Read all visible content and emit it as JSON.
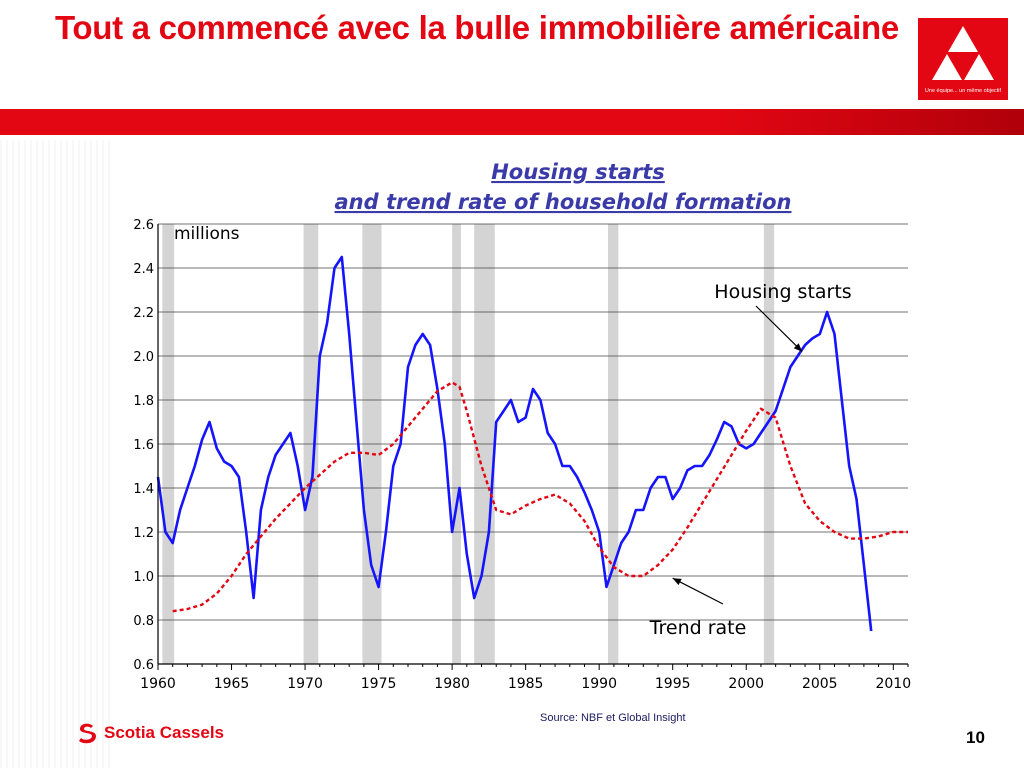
{
  "slide": {
    "title": "Tout a commencé avec la bulle immobilière américaine",
    "page_number": "10",
    "source": "Source: NBF et Global Insight",
    "brand_name": "Scotia Cassels",
    "logo_tagline": "Une équipe... un même objectif",
    "colors": {
      "accent": "#e30613",
      "series_housing": "#1414ff",
      "series_trend": "#e30613",
      "recession": "#d4d4d4"
    }
  },
  "chart_data": {
    "type": "line",
    "title": "Housing starts",
    "subtitle": "and trend rate of household formation",
    "unit_label": "millions",
    "xlabel": "",
    "ylabel": "",
    "xlim": [
      1960,
      2011
    ],
    "ylim": [
      0.6,
      2.6
    ],
    "x_ticks": [
      "1960",
      "1965",
      "1970",
      "1975",
      "1980",
      "1985",
      "1990",
      "1995",
      "2000",
      "2005",
      "2010"
    ],
    "y_ticks": [
      "0.6",
      "0.8",
      "1.0",
      "1.2",
      "1.4",
      "1.6",
      "1.8",
      "2.0",
      "2.2",
      "2.4",
      "2.6"
    ],
    "grid": true,
    "recessions": [
      [
        1960.3,
        1961.1
      ],
      [
        1969.9,
        1970.9
      ],
      [
        1973.9,
        1975.2
      ],
      [
        1980.0,
        1980.6
      ],
      [
        1981.5,
        1982.9
      ],
      [
        1990.6,
        1991.3
      ],
      [
        2001.2,
        2001.9
      ]
    ],
    "series": [
      {
        "name": "Housing starts",
        "style": "solid",
        "x": [
          1960,
          1960.5,
          1961,
          1961.5,
          1962,
          1962.5,
          1963,
          1963.5,
          1964,
          1964.5,
          1965,
          1965.5,
          1966,
          1966.5,
          1967,
          1967.5,
          1968,
          1968.5,
          1969,
          1969.5,
          1970,
          1970.5,
          1971,
          1971.5,
          1972,
          1972.5,
          1973,
          1973.5,
          1974,
          1974.5,
          1975,
          1975.5,
          1976,
          1976.5,
          1977,
          1977.5,
          1978,
          1978.5,
          1979,
          1979.5,
          1980,
          1980.5,
          1981,
          1981.5,
          1982,
          1982.5,
          1983,
          1983.5,
          1984,
          1984.5,
          1985,
          1985.5,
          1986,
          1986.5,
          1987,
          1987.5,
          1988,
          1988.5,
          1989,
          1989.5,
          1990,
          1990.5,
          1991,
          1991.5,
          1992,
          1992.5,
          1993,
          1993.5,
          1994,
          1994.5,
          1995,
          1995.5,
          1996,
          1996.5,
          1997,
          1997.5,
          1998,
          1998.5,
          1999,
          1999.5,
          2000,
          2000.5,
          2001,
          2001.5,
          2002,
          2002.5,
          2003,
          2003.5,
          2004,
          2004.5,
          2005,
          2005.5,
          2006,
          2006.5,
          2007,
          2007.5,
          2008,
          2008.5
        ],
        "values": [
          1.45,
          1.2,
          1.15,
          1.3,
          1.4,
          1.5,
          1.62,
          1.7,
          1.58,
          1.52,
          1.5,
          1.45,
          1.2,
          0.9,
          1.3,
          1.45,
          1.55,
          1.6,
          1.65,
          1.5,
          1.3,
          1.45,
          2.0,
          2.15,
          2.4,
          2.45,
          2.1,
          1.7,
          1.3,
          1.05,
          0.95,
          1.2,
          1.5,
          1.6,
          1.95,
          2.05,
          2.1,
          2.05,
          1.85,
          1.6,
          1.2,
          1.4,
          1.1,
          0.9,
          1.0,
          1.2,
          1.7,
          1.75,
          1.8,
          1.7,
          1.72,
          1.85,
          1.8,
          1.65,
          1.6,
          1.5,
          1.5,
          1.45,
          1.38,
          1.3,
          1.2,
          0.95,
          1.05,
          1.15,
          1.2,
          1.3,
          1.3,
          1.4,
          1.45,
          1.45,
          1.35,
          1.4,
          1.48,
          1.5,
          1.5,
          1.55,
          1.62,
          1.7,
          1.68,
          1.6,
          1.58,
          1.6,
          1.65,
          1.7,
          1.75,
          1.85,
          1.95,
          2.0,
          2.05,
          2.08,
          2.1,
          2.2,
          2.1,
          1.8,
          1.5,
          1.35,
          1.05,
          0.75
        ]
      },
      {
        "name": "Trend rate",
        "style": "dashed",
        "x": [
          1961,
          1962,
          1963,
          1964,
          1965,
          1966,
          1967,
          1968,
          1969,
          1970,
          1971,
          1972,
          1973,
          1974,
          1975,
          1976,
          1977,
          1978,
          1979,
          1980,
          1980.5,
          1981,
          1982,
          1983,
          1984,
          1985,
          1986,
          1987,
          1988,
          1989,
          1990,
          1991,
          1992,
          1993,
          1994,
          1995,
          1996,
          1997,
          1998,
          1999,
          2000,
          2001,
          2002,
          2003,
          2004,
          2005,
          2006,
          2007,
          2008,
          2009,
          2010,
          2011
        ],
        "values": [
          0.84,
          0.85,
          0.87,
          0.92,
          1.0,
          1.1,
          1.18,
          1.26,
          1.33,
          1.4,
          1.46,
          1.52,
          1.56,
          1.56,
          1.55,
          1.6,
          1.68,
          1.76,
          1.84,
          1.88,
          1.86,
          1.75,
          1.5,
          1.3,
          1.28,
          1.32,
          1.35,
          1.37,
          1.33,
          1.25,
          1.13,
          1.04,
          1.0,
          1.0,
          1.05,
          1.12,
          1.22,
          1.33,
          1.44,
          1.55,
          1.66,
          1.76,
          1.72,
          1.5,
          1.33,
          1.25,
          1.2,
          1.17,
          1.17,
          1.18,
          1.2,
          1.2
        ]
      }
    ],
    "annotations": [
      {
        "text": "Housing starts",
        "target_x": 2003.8,
        "target_y": 2.02
      },
      {
        "text": "Trend rate",
        "target_x": 1995.0,
        "target_y": 0.99
      }
    ]
  }
}
